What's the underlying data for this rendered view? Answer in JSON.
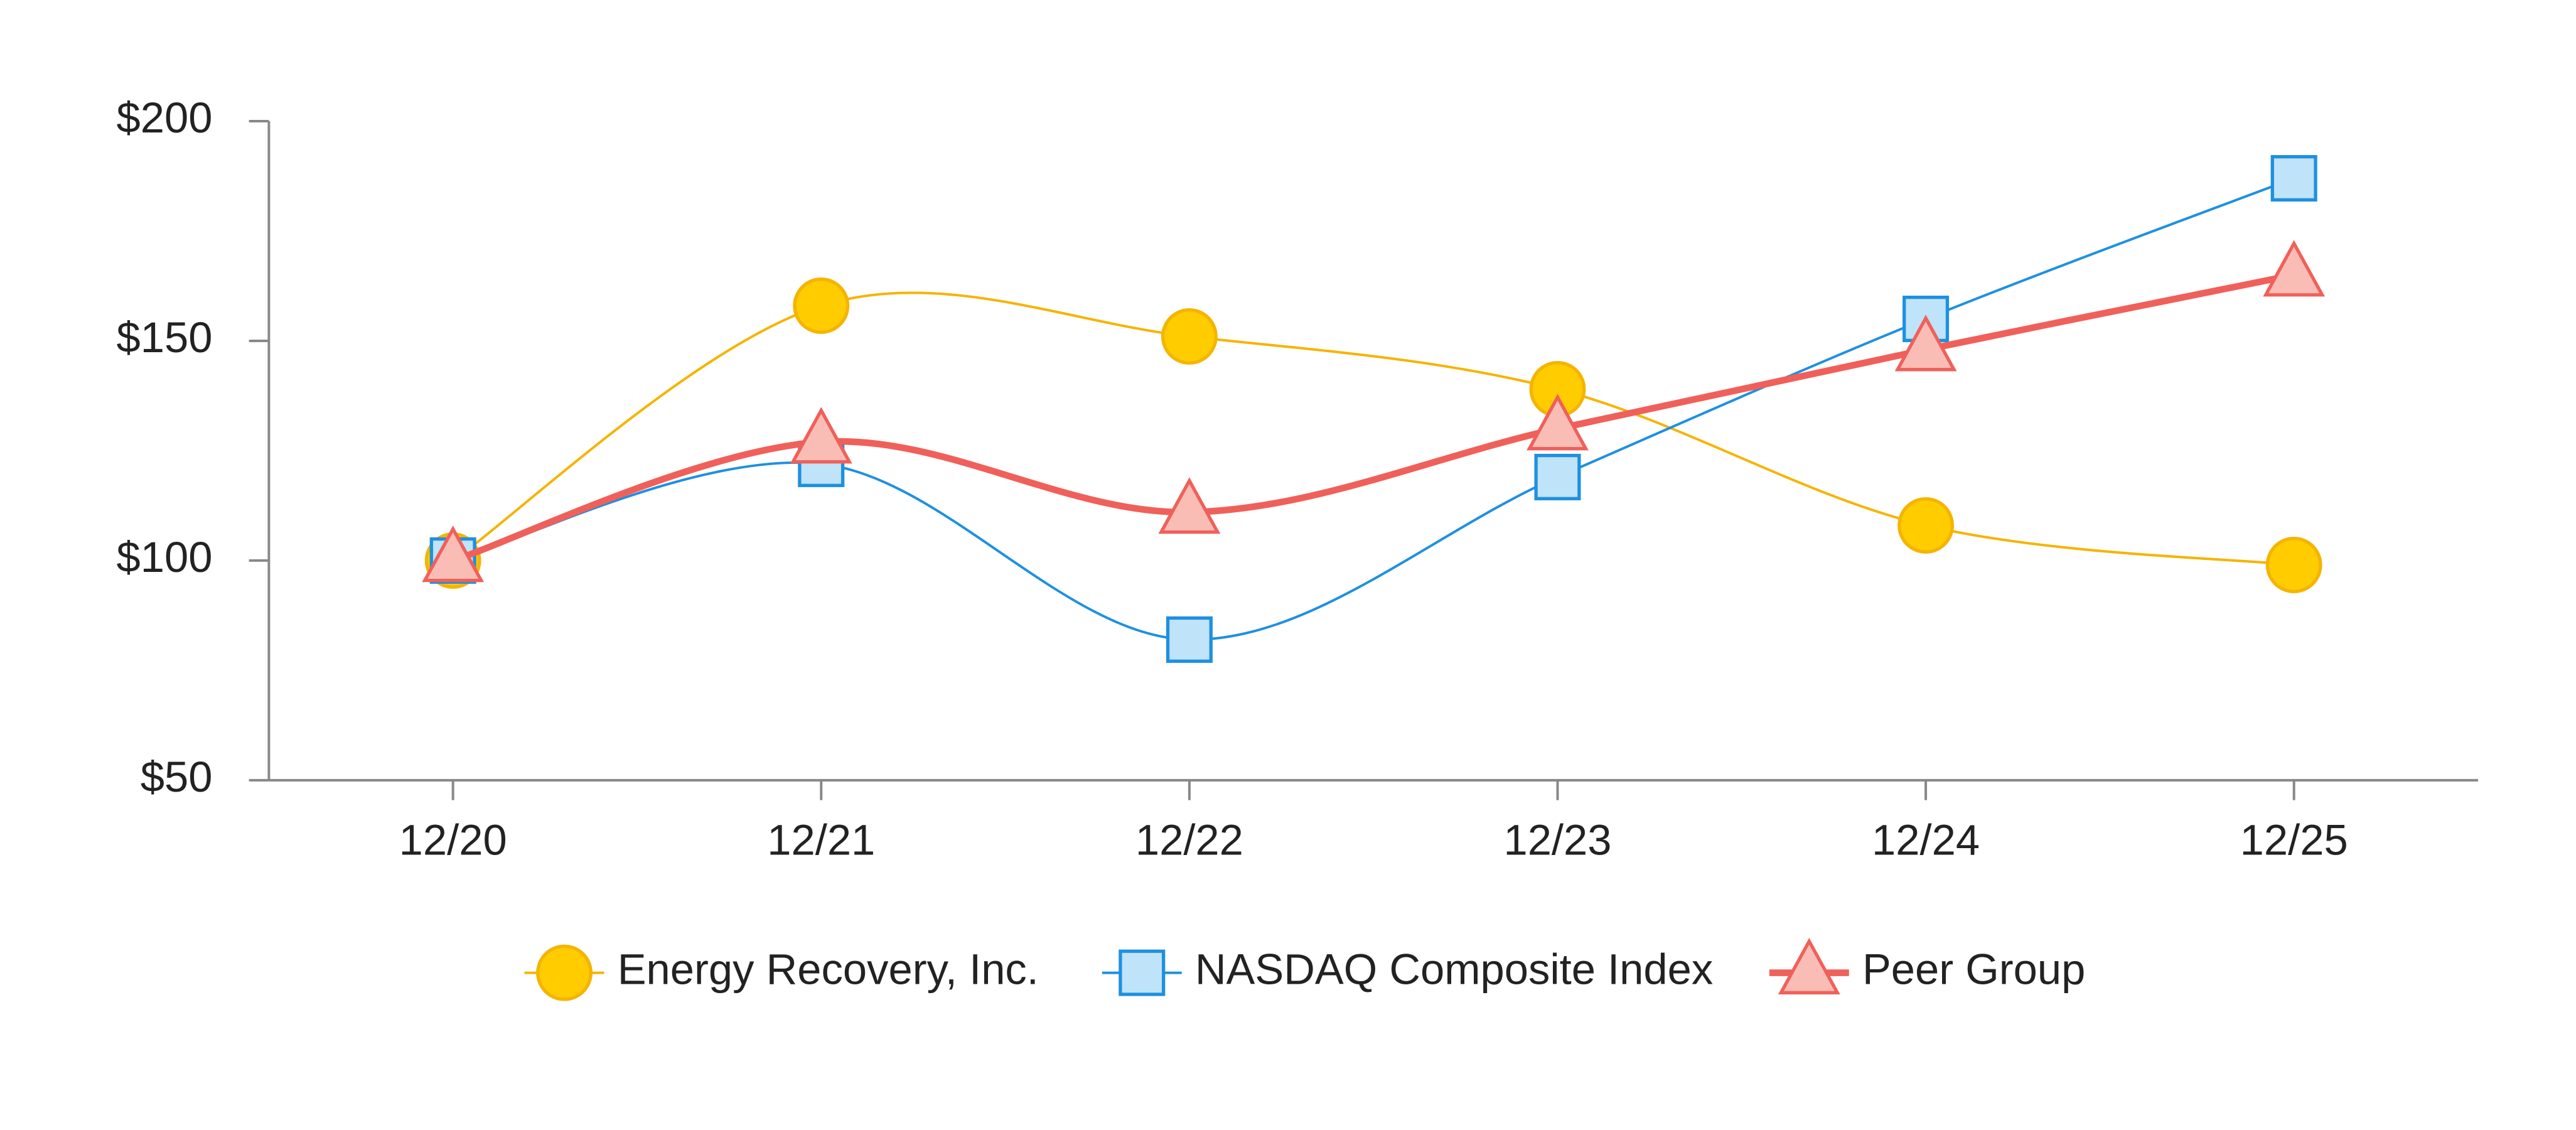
{
  "chart_data": {
    "type": "line",
    "categories": [
      "12/20",
      "12/21",
      "12/22",
      "12/23",
      "12/24",
      "12/25"
    ],
    "series": [
      {
        "name": "Energy Recovery, Inc.",
        "color": "#f5b400",
        "marker": "circle",
        "marker_color": "#ffcc00",
        "values": [
          100,
          158,
          151,
          139,
          108,
          99
        ]
      },
      {
        "name": "NASDAQ Composite Index",
        "color": "#1e90e0",
        "marker": "square",
        "marker_color": "#bfe3f8",
        "values": [
          100,
          122,
          82,
          119,
          155,
          187
        ]
      },
      {
        "name": "Peer Group",
        "color": "#f0605a",
        "marker": "triangle",
        "marker_color": "#f9bdb5",
        "values": [
          100,
          127,
          111,
          130,
          148,
          165
        ]
      }
    ],
    "ylim": [
      50,
      200
    ],
    "yticks": [
      {
        "value": 50,
        "label": "$50"
      },
      {
        "value": 100,
        "label": "$100"
      },
      {
        "value": 150,
        "label": "$150"
      },
      {
        "value": 200,
        "label": "$200"
      }
    ],
    "grid": false
  }
}
